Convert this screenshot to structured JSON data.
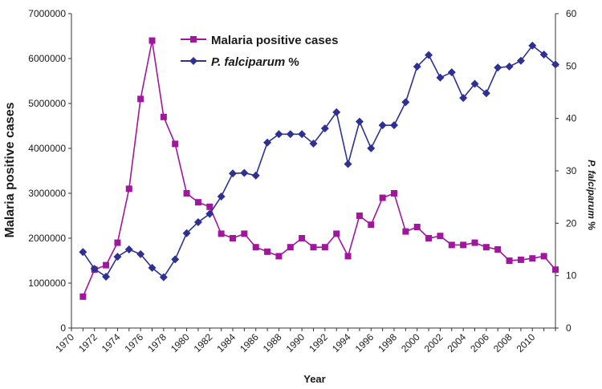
{
  "chart_data": {
    "type": "line",
    "title": "",
    "xlabel": "Year",
    "ylabel_left": "Malaria positive cases",
    "ylabel_right_species": "P. falciparum",
    "ylabel_right_unit": " %",
    "x": [
      1971,
      1972,
      1973,
      1974,
      1975,
      1976,
      1977,
      1978,
      1979,
      1980,
      1981,
      1982,
      1983,
      1984,
      1985,
      1986,
      1987,
      1988,
      1989,
      1990,
      1991,
      1992,
      1993,
      1994,
      1995,
      1996,
      1997,
      1998,
      1999,
      2000,
      2001,
      2002,
      2003,
      2004,
      2005,
      2006,
      2007,
      2008,
      2009,
      2010,
      2011,
      2012
    ],
    "x_ticks": [
      "1970",
      "1972",
      "1974",
      "1976",
      "1978",
      "1980",
      "1982",
      "1984",
      "1986",
      "1988",
      "1990",
      "1992",
      "1994",
      "1996",
      "1998",
      "2000",
      "2002",
      "2004",
      "2006",
      "2008",
      "2010"
    ],
    "x_range": [
      1970,
      2012
    ],
    "ylim_left": [
      0,
      7000000
    ],
    "yticks_left": [
      "0",
      "1000000",
      "2000000",
      "3000000",
      "4000000",
      "5000000",
      "6000000",
      "7000000"
    ],
    "ylim_right": [
      0,
      60
    ],
    "yticks_right": [
      "0",
      "10",
      "20",
      "30",
      "40",
      "50",
      "60"
    ],
    "series": [
      {
        "name": "Malaria positive cases",
        "axis": "left",
        "marker": "square",
        "color": "#a0169c",
        "values": [
          700000,
          1300000,
          1400000,
          1900000,
          3100000,
          5100000,
          6400000,
          4700000,
          4100000,
          3000000,
          2800000,
          2700000,
          2100000,
          2000000,
          2100000,
          1800000,
          1700000,
          1600000,
          1800000,
          2000000,
          1800000,
          1800000,
          2100000,
          1600000,
          2500000,
          2300000,
          2900000,
          3000000,
          2150000,
          2250000,
          2000000,
          2050000,
          1850000,
          1850000,
          1900000,
          1800000,
          1750000,
          1500000,
          1520000,
          1550000,
          1600000,
          1300000
        ]
      },
      {
        "name": "P. falciparum %",
        "name_species": "P. falciparum",
        "name_unit": " %",
        "axis": "right",
        "marker": "diamond",
        "color": "#2e3192",
        "values": [
          14.5,
          11.3,
          9.8,
          13.6,
          15,
          14.1,
          11.5,
          9.7,
          13.1,
          18.1,
          20.2,
          21.8,
          25.1,
          29.5,
          29.6,
          29.1,
          35.4,
          37,
          37,
          37,
          35.2,
          38.1,
          41.2,
          31.3,
          39.4,
          34.3,
          38.7,
          38.7,
          43.1,
          49.9,
          52.1,
          47.8,
          48.8,
          43.9,
          46.6,
          44.8,
          49.7,
          49.9,
          51,
          53.9,
          52.2,
          50.3
        ]
      }
    ],
    "legend": "top-left"
  }
}
